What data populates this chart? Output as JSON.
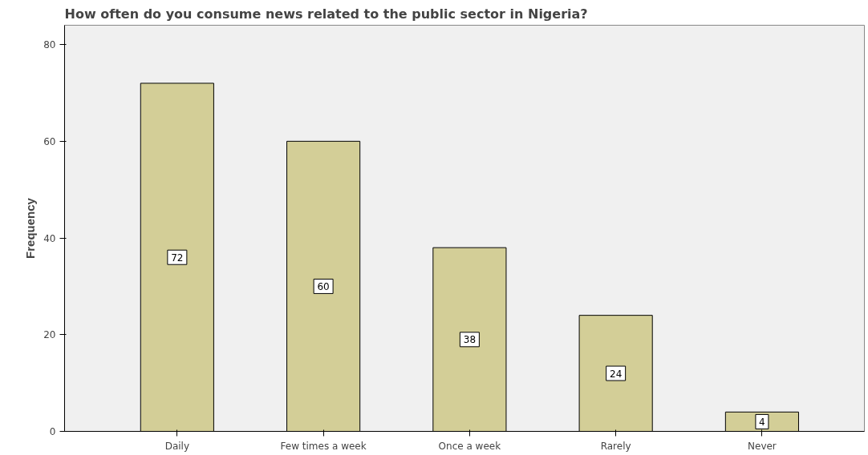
{
  "chart_data": {
    "type": "bar",
    "title": "How often do you consume news related to the public sector in Nigeria?",
    "ylabel": "Frequency",
    "categories": [
      "Daily",
      "Few times a week",
      "Once a week",
      "Rarely",
      "Never"
    ],
    "values": [
      72,
      60,
      38,
      24,
      4
    ],
    "color": "#d3ce97",
    "ylim": [
      0,
      84
    ],
    "yticks": [
      0,
      20,
      40,
      60,
      80
    ],
    "grid": false,
    "data_labels": true
  }
}
